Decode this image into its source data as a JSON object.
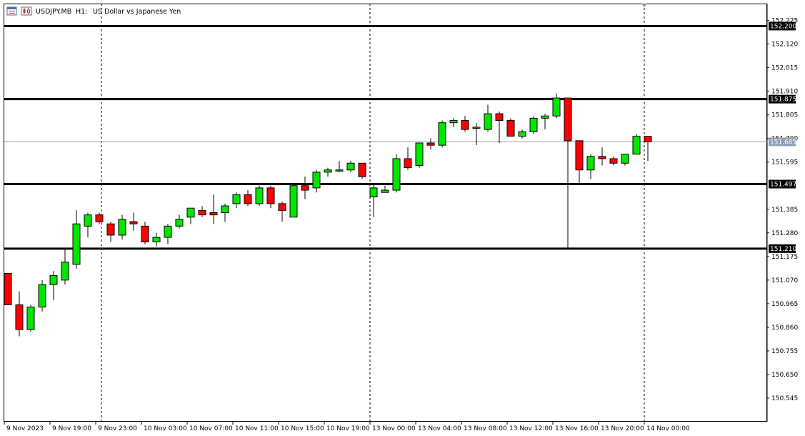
{
  "header": {
    "symbol": "USDJPY.MB",
    "timeframe": "H1:",
    "description": "US Dollar vs Japanese Yen",
    "menu_icon": "chart-menu-icon",
    "chart_icon": "candle-chart-icon"
  },
  "colors": {
    "bull": "#00e600",
    "bear": "#ff0000",
    "wick": "#000000",
    "hline": "#000000",
    "current_line": "#8ca0b4",
    "current_label_bg": "#8ca0b4",
    "grid_vline": "#000000"
  },
  "chart_data": {
    "type": "candlestick",
    "symbol": "USDJPY.MB",
    "timeframe": "H1",
    "y_axis": {
      "range": [
        150.44,
        152.3
      ],
      "ticks": [
        "152.225",
        "152.120",
        "152.015",
        "151.910",
        "151.805",
        "151.700",
        "151.595",
        "151.385",
        "151.280",
        "151.175",
        "151.070",
        "150.965",
        "150.860",
        "150.755",
        "150.650",
        "150.545"
      ]
    },
    "x_axis": {
      "labels": [
        "9 Nov 2023",
        "9 Nov 19:00",
        "9 Nov 23:00",
        "10 Nov 03:00",
        "10 Nov 07:00",
        "10 Nov 11:00",
        "10 Nov 15:00",
        "10 Nov 19:00",
        "13 Nov 00:00",
        "13 Nov 04:00",
        "13 Nov 08:00",
        "13 Nov 12:00",
        "13 Nov 16:00",
        "13 Nov 20:00",
        "14 Nov 00:00"
      ],
      "label_bars": [
        0,
        4,
        8,
        12,
        16,
        20,
        24,
        28,
        32,
        36,
        40,
        44,
        48,
        52,
        56
      ]
    },
    "session_separators_at_bar": [
      8.5,
      32,
      56
    ],
    "horizontal_levels": [
      {
        "label": "152.200",
        "value": 152.2
      },
      {
        "label": "151.875",
        "value": 151.875
      },
      {
        "label": "151.497",
        "value": 151.497
      },
      {
        "label": "151.210",
        "value": 151.21
      }
    ],
    "current_price": {
      "label": "151.685",
      "value": 151.685
    },
    "candles": [
      {
        "o": 151.1,
        "h": 151.1,
        "l": 150.96,
        "c": 150.96
      },
      {
        "o": 150.96,
        "h": 151.02,
        "l": 150.82,
        "c": 150.85
      },
      {
        "o": 150.85,
        "h": 150.96,
        "l": 150.84,
        "c": 150.95
      },
      {
        "o": 150.95,
        "h": 151.07,
        "l": 150.93,
        "c": 151.05
      },
      {
        "o": 151.05,
        "h": 151.11,
        "l": 150.98,
        "c": 151.09
      },
      {
        "o": 151.07,
        "h": 151.21,
        "l": 151.05,
        "c": 151.15
      },
      {
        "o": 151.14,
        "h": 151.38,
        "l": 151.12,
        "c": 151.32
      },
      {
        "o": 151.31,
        "h": 151.37,
        "l": 151.26,
        "c": 151.36
      },
      {
        "o": 151.36,
        "h": 151.37,
        "l": 151.32,
        "c": 151.33
      },
      {
        "o": 151.32,
        "h": 151.33,
        "l": 151.24,
        "c": 151.27
      },
      {
        "o": 151.27,
        "h": 151.36,
        "l": 151.25,
        "c": 151.34
      },
      {
        "o": 151.33,
        "h": 151.37,
        "l": 151.29,
        "c": 151.32
      },
      {
        "o": 151.31,
        "h": 151.33,
        "l": 151.23,
        "c": 151.24
      },
      {
        "o": 151.24,
        "h": 151.28,
        "l": 151.22,
        "c": 151.26
      },
      {
        "o": 151.26,
        "h": 151.32,
        "l": 151.23,
        "c": 151.31
      },
      {
        "o": 151.31,
        "h": 151.36,
        "l": 151.3,
        "c": 151.34
      },
      {
        "o": 151.35,
        "h": 151.39,
        "l": 151.32,
        "c": 151.39
      },
      {
        "o": 151.38,
        "h": 151.4,
        "l": 151.35,
        "c": 151.36
      },
      {
        "o": 151.37,
        "h": 151.45,
        "l": 151.32,
        "c": 151.36
      },
      {
        "o": 151.37,
        "h": 151.41,
        "l": 151.33,
        "c": 151.4
      },
      {
        "o": 151.41,
        "h": 151.46,
        "l": 151.39,
        "c": 151.45
      },
      {
        "o": 151.45,
        "h": 151.47,
        "l": 151.4,
        "c": 151.41
      },
      {
        "o": 151.41,
        "h": 151.49,
        "l": 151.4,
        "c": 151.48
      },
      {
        "o": 151.48,
        "h": 151.49,
        "l": 151.39,
        "c": 151.41
      },
      {
        "o": 151.41,
        "h": 151.42,
        "l": 151.33,
        "c": 151.38
      },
      {
        "o": 151.35,
        "h": 151.5,
        "l": 151.35,
        "c": 151.49
      },
      {
        "o": 151.49,
        "h": 151.53,
        "l": 151.43,
        "c": 151.47
      },
      {
        "o": 151.48,
        "h": 151.56,
        "l": 151.46,
        "c": 151.55
      },
      {
        "o": 151.55,
        "h": 151.57,
        "l": 151.53,
        "c": 151.56
      },
      {
        "o": 151.555,
        "h": 151.6,
        "l": 151.55,
        "c": 151.56
      },
      {
        "o": 151.56,
        "h": 151.6,
        "l": 151.55,
        "c": 151.59
      },
      {
        "o": 151.59,
        "h": 151.59,
        "l": 151.52,
        "c": 151.53
      },
      {
        "o": 151.44,
        "h": 151.5,
        "l": 151.35,
        "c": 151.48
      },
      {
        "o": 151.46,
        "h": 151.49,
        "l": 151.46,
        "c": 151.47
      },
      {
        "o": 151.47,
        "h": 151.63,
        "l": 151.46,
        "c": 151.61
      },
      {
        "o": 151.61,
        "h": 151.66,
        "l": 151.56,
        "c": 151.57
      },
      {
        "o": 151.58,
        "h": 151.68,
        "l": 151.57,
        "c": 151.68
      },
      {
        "o": 151.68,
        "h": 151.7,
        "l": 151.65,
        "c": 151.67
      },
      {
        "o": 151.67,
        "h": 151.78,
        "l": 151.66,
        "c": 151.77
      },
      {
        "o": 151.77,
        "h": 151.79,
        "l": 151.75,
        "c": 151.78
      },
      {
        "o": 151.78,
        "h": 151.8,
        "l": 151.73,
        "c": 151.74
      },
      {
        "o": 151.75,
        "h": 151.77,
        "l": 151.67,
        "c": 151.75
      },
      {
        "o": 151.74,
        "h": 151.85,
        "l": 151.73,
        "c": 151.81
      },
      {
        "o": 151.81,
        "h": 151.82,
        "l": 151.68,
        "c": 151.78
      },
      {
        "o": 151.78,
        "h": 151.79,
        "l": 151.71,
        "c": 151.71
      },
      {
        "o": 151.71,
        "h": 151.74,
        "l": 151.7,
        "c": 151.73
      },
      {
        "o": 151.73,
        "h": 151.8,
        "l": 151.72,
        "c": 151.79
      },
      {
        "o": 151.79,
        "h": 151.81,
        "l": 151.74,
        "c": 151.8
      },
      {
        "o": 151.8,
        "h": 151.9,
        "l": 151.79,
        "c": 151.88
      },
      {
        "o": 151.88,
        "h": 151.88,
        "l": 151.21,
        "c": 151.69
      },
      {
        "o": 151.69,
        "h": 151.69,
        "l": 151.5,
        "c": 151.56
      },
      {
        "o": 151.56,
        "h": 151.63,
        "l": 151.52,
        "c": 151.62
      },
      {
        "o": 151.62,
        "h": 151.66,
        "l": 151.58,
        "c": 151.61
      },
      {
        "o": 151.61,
        "h": 151.62,
        "l": 151.58,
        "c": 151.59
      },
      {
        "o": 151.59,
        "h": 151.63,
        "l": 151.58,
        "c": 151.63
      },
      {
        "o": 151.63,
        "h": 151.72,
        "l": 151.63,
        "c": 151.71
      },
      {
        "o": 151.71,
        "h": 151.71,
        "l": 151.6,
        "c": 151.685
      }
    ]
  }
}
